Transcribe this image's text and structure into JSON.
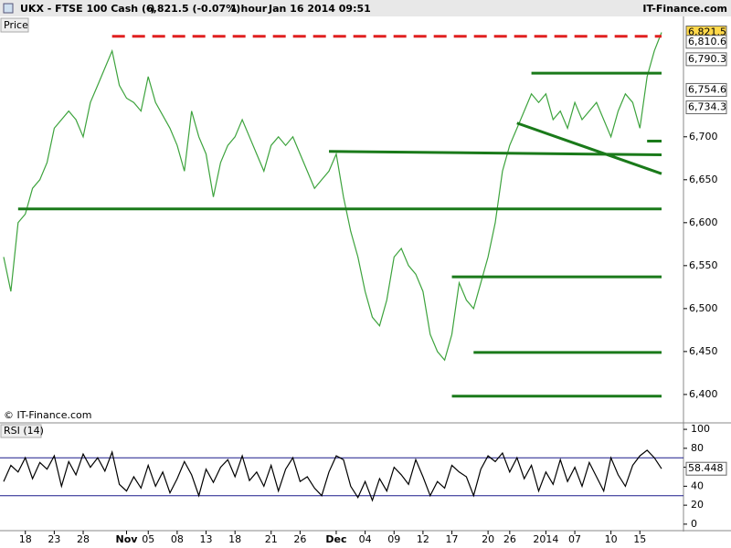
{
  "header": {
    "symbol": "UKX - FTSE 100 Cash (-)",
    "quote": "6,821.5 (-0.07%)",
    "interval": "1 hour",
    "timestamp": "Jan 16 2014 09:51",
    "brand": "IT-Finance.com"
  },
  "chart_data": [
    {
      "type": "line",
      "panel_label": "Price",
      "watermark": "© IT-Finance.com",
      "color": "#3da33d",
      "values": [
        6560,
        6520,
        6600,
        6610,
        6640,
        6650,
        6670,
        6710,
        6720,
        6730,
        6720,
        6700,
        6740,
        6760,
        6780,
        6800,
        6760,
        6745,
        6740,
        6730,
        6770,
        6740,
        6725,
        6710,
        6690,
        6660,
        6730,
        6700,
        6680,
        6630,
        6670,
        6690,
        6700,
        6720,
        6700,
        6680,
        6660,
        6690,
        6700,
        6690,
        6700,
        6680,
        6660,
        6640,
        6650,
        6660,
        6680,
        6630,
        6590,
        6560,
        6520,
        6490,
        6480,
        6510,
        6560,
        6570,
        6550,
        6540,
        6520,
        6470,
        6450,
        6440,
        6470,
        6530,
        6510,
        6500,
        6530,
        6560,
        6600,
        6660,
        6690,
        6710,
        6730,
        6750,
        6740,
        6750,
        6720,
        6730,
        6710,
        6740,
        6720,
        6730,
        6740,
        6720,
        6700,
        6730,
        6750,
        6740,
        6710,
        6770,
        6800,
        6821.5
      ],
      "ylim": [
        6368,
        6838
      ],
      "yticks": [
        {
          "value": 6400,
          "label": "6,400"
        },
        {
          "value": 6450,
          "label": "6,450"
        },
        {
          "value": 6500,
          "label": "6,500"
        },
        {
          "value": 6550,
          "label": "6,550"
        },
        {
          "value": 6600,
          "label": "6,600"
        },
        {
          "value": 6650,
          "label": "6,650"
        },
        {
          "value": 6700,
          "label": "6,700"
        }
      ],
      "levels": [
        {
          "x": [
            15,
            91
          ],
          "values": [
            6817,
            6817
          ],
          "color": "#e02020",
          "dashed": true
        },
        {
          "x": [
            2,
            91
          ],
          "values": [
            6616,
            6616
          ],
          "color": "#1a7a1a",
          "dashed": false
        },
        {
          "x": [
            45,
            91
          ],
          "values": [
            6683,
            6679
          ],
          "color": "#1a7a1a",
          "dashed": false
        },
        {
          "x": [
            73,
            91
          ],
          "values": [
            6774,
            6774
          ],
          "color": "#1a7a1a",
          "dashed": false
        },
        {
          "x": [
            89,
            91
          ],
          "values": [
            6695,
            6695
          ],
          "color": "#1a7a1a",
          "dashed": false
        },
        {
          "x": [
            71,
            91
          ],
          "values": [
            6716,
            6657
          ],
          "color": "#1a7a1a",
          "dashed": false
        },
        {
          "x": [
            62,
            91
          ],
          "values": [
            6537,
            6537
          ],
          "color": "#1a7a1a",
          "dashed": false
        },
        {
          "x": [
            65,
            91
          ],
          "values": [
            6449,
            6449
          ],
          "color": "#1a7a1a",
          "dashed": false
        },
        {
          "x": [
            62,
            91
          ],
          "values": [
            6398,
            6398
          ],
          "color": "#1a7a1a",
          "dashed": false
        }
      ],
      "price_flags": {
        "values": [
          6821.5,
          6810.6,
          6790.3,
          6754.6,
          6734.3
        ],
        "value_labels": [
          "6,821.5",
          "6,810.6",
          "6,790.3",
          "6,754.6",
          "6,734.3"
        ],
        "colors": [
          "#ffd84a",
          "#ffffff",
          "#ffffff",
          "#ffffff",
          "#ffffff"
        ]
      }
    },
    {
      "type": "line",
      "panel_label": "RSI (14)",
      "color": "#000000",
      "categories": [
        null,
        null,
        null,
        "18",
        null,
        null,
        null,
        "23",
        null,
        null,
        null,
        "28",
        null,
        null,
        null,
        null,
        null,
        "Nov",
        null,
        null,
        "05",
        null,
        null,
        null,
        "08",
        null,
        null,
        null,
        "13",
        null,
        null,
        null,
        "18",
        null,
        null,
        null,
        null,
        "21",
        null,
        null,
        null,
        "26",
        null,
        null,
        null,
        null,
        "Dec",
        null,
        null,
        null,
        "04",
        null,
        null,
        null,
        "09",
        null,
        null,
        null,
        "12",
        null,
        null,
        null,
        "17",
        null,
        null,
        null,
        null,
        "20",
        null,
        null,
        "26",
        null,
        null,
        null,
        null,
        "2014",
        null,
        null,
        null,
        "07",
        null,
        null,
        null,
        null,
        "10",
        null,
        null,
        null,
        "15",
        null,
        null,
        null
      ],
      "values": [
        45,
        62,
        55,
        70,
        48,
        65,
        58,
        72,
        40,
        66,
        52,
        74,
        60,
        70,
        56,
        76,
        42,
        35,
        50,
        38,
        62,
        40,
        55,
        33,
        48,
        66,
        52,
        30,
        58,
        44,
        60,
        68,
        50,
        72,
        46,
        55,
        40,
        62,
        35,
        58,
        70,
        45,
        50,
        38,
        30,
        55,
        72,
        68,
        40,
        28,
        45,
        25,
        48,
        35,
        60,
        52,
        42,
        68,
        50,
        30,
        45,
        38,
        62,
        55,
        50,
        30,
        58,
        72,
        66,
        75,
        55,
        70,
        48,
        62,
        35,
        55,
        42,
        68,
        45,
        60,
        40,
        65,
        50,
        35,
        70,
        52,
        40,
        62,
        72,
        78,
        70,
        58.448
      ],
      "current_value": 58.448,
      "ylim": [
        -3,
        102
      ],
      "yticks": [
        0,
        20,
        40,
        60,
        80,
        100
      ],
      "bands": [
        30,
        70
      ],
      "band_color": "#1c1c8c"
    }
  ]
}
